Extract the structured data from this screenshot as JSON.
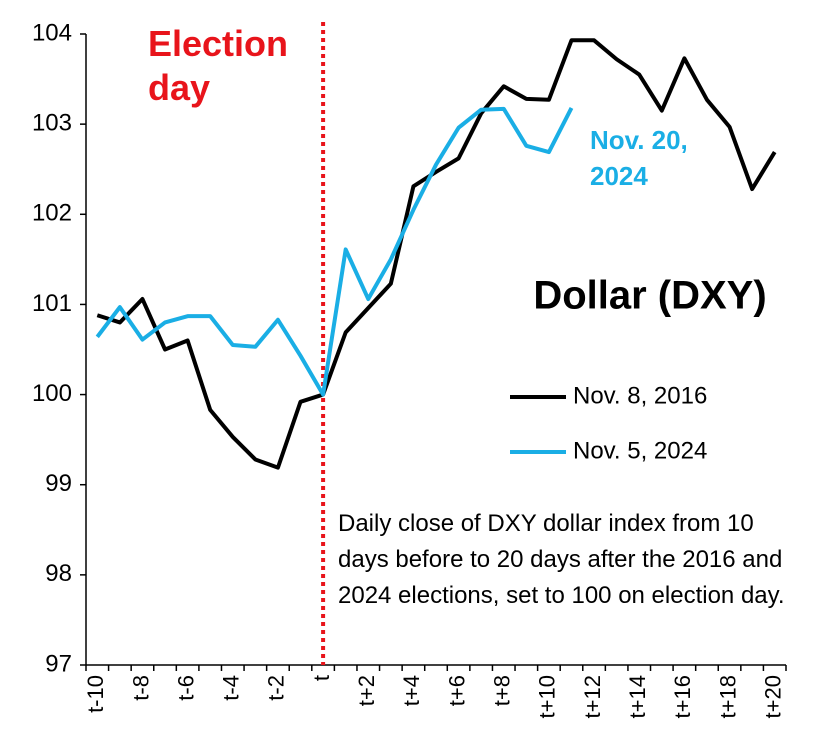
{
  "chart_data": {
    "type": "line",
    "title": "Dollar (DXY)",
    "annotations": [
      "Election day",
      "Nov. 20, 2024",
      "Daily close of DXY dollar index from 10 days before to 20 days after the 2016 and 2024 elections, set to 100 on election day."
    ],
    "categories": [
      "t-10",
      null,
      "t-8",
      null,
      "t-6",
      null,
      "t-4",
      null,
      "t-2",
      null,
      "t",
      null,
      "t+2",
      null,
      "t+4",
      null,
      "t+6",
      null,
      "t+8",
      null,
      "t+10",
      null,
      "t+12",
      null,
      "t+14",
      null,
      "t+16",
      null,
      "t+18",
      null,
      "t+20"
    ],
    "series": [
      {
        "name": "Nov. 8, 2016",
        "color": "#000000",
        "values": [
          100.88,
          100.8,
          101.06,
          100.5,
          100.6,
          99.83,
          99.53,
          99.28,
          99.19,
          99.92,
          100.0,
          100.69,
          100.96,
          101.23,
          102.31,
          102.47,
          102.62,
          103.12,
          103.42,
          103.28,
          103.27,
          103.93,
          103.93,
          103.72,
          103.55,
          103.15,
          103.73,
          103.27,
          102.97,
          102.28,
          102.69
        ]
      },
      {
        "name": "Nov. 5, 2024",
        "color": "#1aaee5",
        "values": [
          100.64,
          100.97,
          100.61,
          100.8,
          100.87,
          100.87,
          100.55,
          100.53,
          100.83,
          100.43,
          100.0,
          101.61,
          101.06,
          101.5,
          102.05,
          102.55,
          102.96,
          103.16,
          103.17,
          102.76,
          102.69,
          103.18,
          null,
          null,
          null,
          null,
          null,
          null,
          null,
          null,
          null
        ]
      }
    ],
    "ylim": [
      97,
      104
    ],
    "yticks": [
      97,
      98,
      99,
      100,
      101,
      102,
      103,
      104
    ],
    "grid": false,
    "legend": "right"
  }
}
